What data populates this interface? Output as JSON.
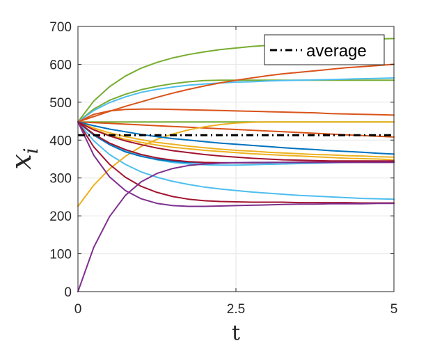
{
  "chart_data": {
    "type": "line",
    "xlabel": "t",
    "ylabel": "x",
    "ylabel_subscript": "i",
    "xlim": [
      0,
      5
    ],
    "ylim": [
      0,
      700
    ],
    "xticks": [
      0,
      2.5,
      5
    ],
    "xtick_labels": [
      "0",
      "2.5",
      "5"
    ],
    "yticks": [
      0,
      100,
      200,
      300,
      400,
      500,
      600,
      700
    ],
    "ytick_labels": [
      "0",
      "100",
      "200",
      "300",
      "400",
      "500",
      "600",
      "700"
    ],
    "grid": true,
    "legend": {
      "position": "top-right",
      "entries": [
        "average"
      ]
    },
    "x": [
      0,
      0.25,
      0.5,
      0.75,
      1,
      1.25,
      1.5,
      1.75,
      2,
      2.25,
      2.5,
      2.75,
      3,
      3.25,
      3.5,
      3.75,
      4,
      4.25,
      4.5,
      4.75,
      5
    ],
    "series": [
      {
        "name": "average",
        "color": "#000000",
        "style": "dashdot",
        "width": 3,
        "values": [
          413,
          413,
          413,
          413,
          413,
          413,
          413,
          413,
          413,
          413,
          413,
          413,
          413,
          413,
          413,
          413,
          413,
          413,
          413,
          413,
          413
        ]
      },
      {
        "name": "green-1",
        "color": "#77AC30",
        "values": [
          448,
          503,
          541,
          569,
          590,
          605,
          617,
          626,
          633,
          639,
          643,
          647,
          650,
          653,
          656,
          659,
          661,
          663,
          665,
          667,
          668
        ]
      },
      {
        "name": "green-2",
        "color": "#77AC30",
        "values": [
          448,
          482,
          505,
          521,
          533,
          542,
          549,
          554,
          557,
          558,
          558,
          558,
          558,
          558,
          558,
          558,
          558,
          558,
          558,
          558,
          558
        ]
      },
      {
        "name": "green-3",
        "color": "#77AC30",
        "values": [
          448,
          448,
          448,
          448,
          448,
          448,
          448,
          448,
          448,
          448,
          448,
          448,
          448,
          448,
          448,
          448,
          448,
          448,
          448,
          448,
          448
        ]
      },
      {
        "name": "cyan-1",
        "color": "#4DBEEE",
        "values": [
          448,
          478,
          499,
          514,
          526,
          534,
          540,
          545,
          548,
          551,
          553,
          554,
          556,
          557,
          558,
          559,
          560,
          561,
          562,
          563,
          564
        ]
      },
      {
        "name": "cyan-2",
        "color": "#4DBEEE",
        "values": [
          448,
          415,
          390,
          372,
          358,
          348,
          341,
          337,
          335,
          334,
          334,
          335,
          336,
          337,
          338,
          339,
          340,
          341,
          342,
          343,
          343
        ]
      },
      {
        "name": "cyan-3",
        "color": "#4DBEEE",
        "values": [
          448,
          398,
          362,
          336,
          316,
          302,
          291,
          283,
          276,
          271,
          267,
          263,
          260,
          257,
          254,
          252,
          250,
          248,
          246,
          245,
          244
        ]
      },
      {
        "name": "orange-1",
        "color": "#D95319",
        "values": [
          448,
          462,
          476,
          489,
          501,
          513,
          524,
          534,
          543,
          551,
          558,
          564,
          570,
          575,
          579,
          583,
          587,
          591,
          594,
          597,
          600
        ]
      },
      {
        "name": "orange-2",
        "color": "#D95319",
        "values": [
          448,
          468,
          477,
          481,
          482,
          482,
          481,
          480,
          479,
          478,
          477,
          476,
          475,
          474,
          473,
          472,
          470,
          469,
          468,
          467,
          466
        ]
      },
      {
        "name": "orange-3",
        "color": "#D95319",
        "values": [
          448,
          446,
          444,
          442,
          440,
          438,
          436,
          434,
          432,
          430,
          428,
          426,
          424,
          422,
          420,
          418,
          416,
          414,
          412,
          410,
          408
        ]
      },
      {
        "name": "yellow-1",
        "color": "#EDB120",
        "values": [
          225,
          281,
          324,
          357,
          383,
          402,
          416,
          427,
          435,
          441,
          445,
          447,
          448,
          448,
          448,
          448,
          448,
          448,
          448,
          448,
          448
        ]
      },
      {
        "name": "yellow-2",
        "color": "#EDB120",
        "values": [
          448,
          432,
          419,
          409,
          401,
          394,
          389,
          384,
          380,
          376,
          373,
          371,
          368,
          366,
          364,
          362,
          361,
          359,
          358,
          356,
          355
        ]
      },
      {
        "name": "yellow-3",
        "color": "#EDB120",
        "values": [
          448,
          428,
          413,
          402,
          394,
          387,
          381,
          377,
          373,
          370,
          367,
          364,
          362,
          360,
          358,
          356,
          354,
          352,
          351,
          350,
          348
        ]
      },
      {
        "name": "blue-1",
        "color": "#0072BD",
        "values": [
          448,
          438,
          429,
          422,
          415,
          409,
          404,
          400,
          396,
          392,
          389,
          386,
          383,
          380,
          377,
          375,
          372,
          370,
          368,
          365,
          363
        ]
      },
      {
        "name": "blue-2",
        "color": "#0072BD",
        "values": [
          448,
          413,
          388,
          369,
          357,
          349,
          344,
          341,
          340,
          340,
          340,
          340,
          340,
          341,
          341,
          341,
          342,
          342,
          342,
          342,
          342
        ]
      },
      {
        "name": "red-1",
        "color": "#A2142F",
        "values": [
          448,
          427,
          411,
          398,
          388,
          379,
          372,
          367,
          362,
          358,
          355,
          352,
          350,
          348,
          347,
          346,
          345,
          345,
          345,
          345,
          345
        ]
      },
      {
        "name": "red-2",
        "color": "#A2142F",
        "values": [
          448,
          416,
          392,
          375,
          362,
          353,
          347,
          343,
          341,
          340,
          340,
          340,
          341,
          341,
          342,
          342,
          343,
          343,
          344,
          344,
          344
        ]
      },
      {
        "name": "red-3",
        "color": "#A2142F",
        "values": [
          448,
          382,
          336,
          302,
          278,
          262,
          251,
          244,
          240,
          238,
          237,
          236,
          236,
          236,
          235,
          235,
          235,
          235,
          234,
          234,
          234
        ]
      },
      {
        "name": "purple-1",
        "color": "#7E2F8E",
        "values": [
          448,
          360,
          303,
          267,
          245,
          233,
          227,
          225,
          225,
          226,
          227,
          228,
          229,
          230,
          231,
          231,
          232,
          232,
          232,
          233,
          233
        ]
      },
      {
        "name": "purple-2",
        "color": "#7E2F8E",
        "values": [
          0,
          117,
          198,
          254,
          290,
          312,
          325,
          333,
          337,
          339,
          340,
          341,
          341,
          341,
          341,
          341,
          341,
          341,
          341,
          341,
          341
        ]
      }
    ]
  }
}
